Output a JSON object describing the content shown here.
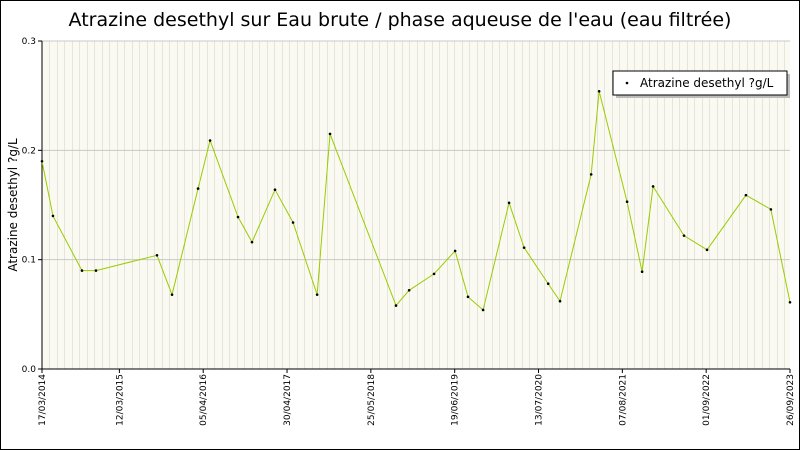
{
  "chart_data": {
    "type": "line",
    "title": "Atrazine desethyl sur Eau brute / phase aqueuse de l'eau (eau filtrée)",
    "y_label": "Atrazine desethyl ?g/L",
    "x": [
      "2014-03-17",
      "2014-05-07",
      "2014-09-19",
      "2014-11-23",
      "2015-09-03",
      "2015-11-12",
      "2016-03-12",
      "2016-05-07",
      "2016-09-14",
      "2016-11-18",
      "2017-03-05",
      "2017-05-28",
      "2017-09-17",
      "2017-11-16",
      "2018-09-19",
      "2018-11-19",
      "2019-03-15",
      "2019-06-21",
      "2019-08-20",
      "2019-10-29",
      "2020-02-27",
      "2020-05-07",
      "2020-08-27",
      "2020-10-21",
      "2021-03-15",
      "2021-04-21",
      "2021-08-29",
      "2021-11-07",
      "2021-12-28",
      "2022-05-21",
      "2022-09-05",
      "2023-03-05",
      "2023-06-29",
      "2023-09-26"
    ],
    "series": [
      {
        "name": "Atrazine desethyl ?g/L",
        "color": "#99cc00",
        "values": [
          0.19,
          0.14,
          0.09,
          0.09,
          0.104,
          0.068,
          0.165,
          0.209,
          0.139,
          0.116,
          0.164,
          0.134,
          0.068,
          0.215,
          0.058,
          0.072,
          0.087,
          0.108,
          0.066,
          0.054,
          0.152,
          0.111,
          0.078,
          0.062,
          0.178,
          0.254,
          0.153,
          0.089,
          0.167,
          0.122,
          0.109,
          0.159,
          0.146,
          0.061
        ]
      }
    ],
    "xlim": [
      "2014-03-17",
      "2023-09-26"
    ],
    "xticks": [
      {
        "value": "2014-03-17",
        "label": "17/03/2014"
      },
      {
        "value": "2015-03-12",
        "label": "12/03/2015"
      },
      {
        "value": "2016-04-05",
        "label": "05/04/2016"
      },
      {
        "value": "2017-04-30",
        "label": "30/04/2017"
      },
      {
        "value": "2018-05-25",
        "label": "25/05/2018"
      },
      {
        "value": "2019-06-19",
        "label": "19/06/2019"
      },
      {
        "value": "2020-07-13",
        "label": "13/07/2020"
      },
      {
        "value": "2021-08-07",
        "label": "07/08/2021"
      },
      {
        "value": "2022-09-01",
        "label": "01/09/2022"
      },
      {
        "value": "2023-09-26",
        "label": "26/09/2023"
      }
    ],
    "ylim": [
      0,
      0.3
    ],
    "yticks": [
      {
        "value": 0,
        "label": "0.0"
      },
      0.1,
      0.2,
      0.3
    ],
    "grid": true,
    "legend": "top-right"
  }
}
